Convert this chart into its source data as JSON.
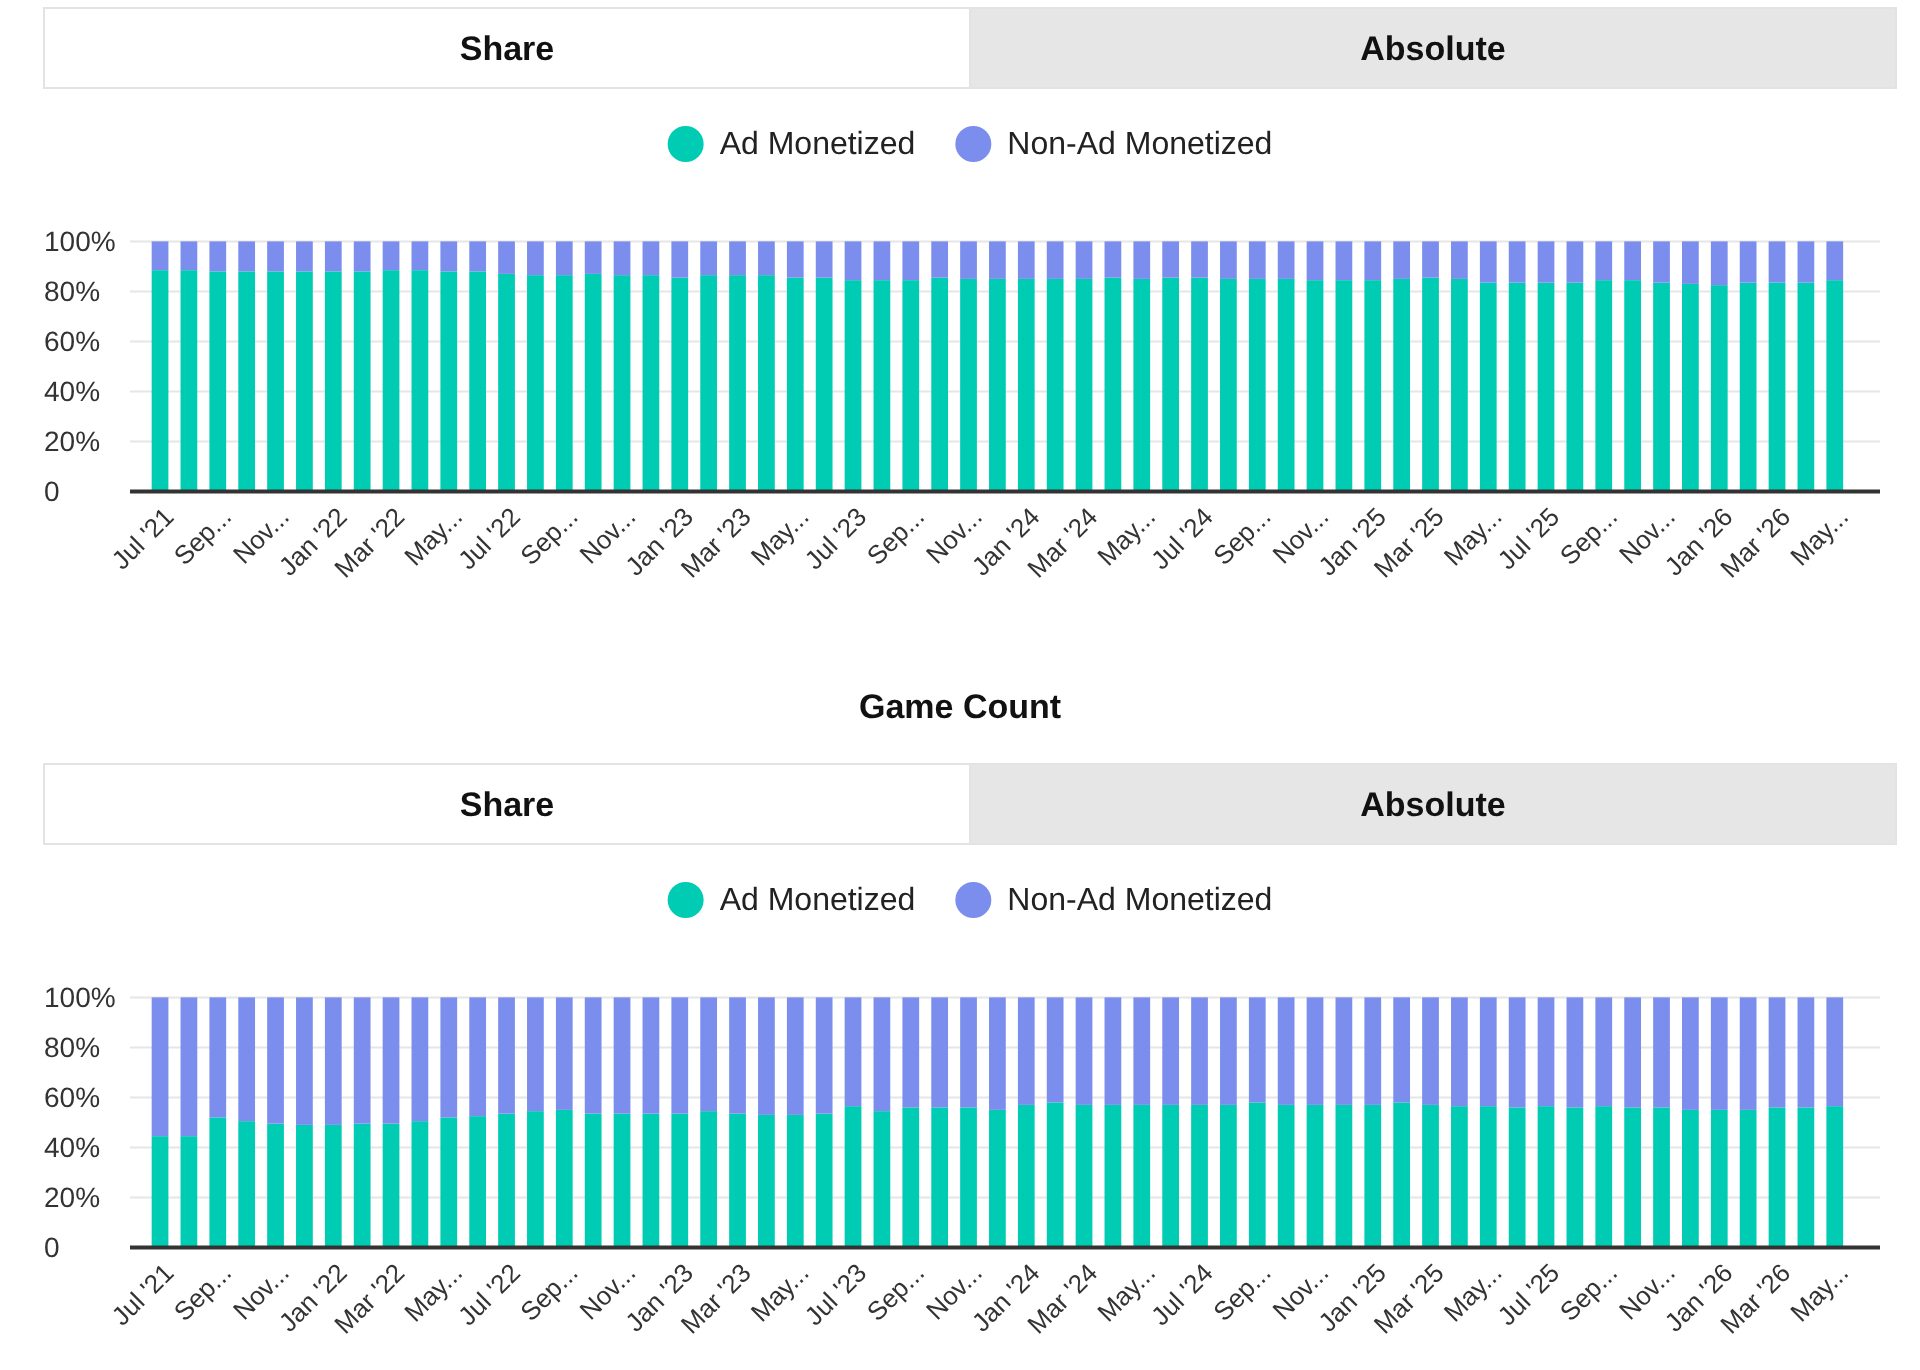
{
  "chart_data": [
    {
      "type": "bar",
      "stacked": true,
      "annotations": [
        "Share",
        "Absolute"
      ],
      "legend": "top",
      "grid": "y",
      "categories": [
        "Jul '21",
        null,
        "Sep...",
        null,
        "Nov...",
        null,
        "Jan '22",
        null,
        "Mar '22",
        null,
        "May...",
        null,
        "Jul '22",
        null,
        "Sep...",
        null,
        "Nov...",
        null,
        "Jan '23",
        null,
        "Mar '23",
        null,
        "May...",
        null,
        "Jul '23",
        null,
        "Sep...",
        null,
        "Nov...",
        null,
        "Jan '24",
        null,
        "Mar '24",
        null,
        "May...",
        null,
        "Jul '24",
        null,
        "Sep...",
        null,
        "Nov...",
        null,
        "Jan '25",
        null,
        "Mar '25",
        null,
        "May...",
        null,
        "Jul '25",
        null,
        "Sep...",
        null,
        "Nov...",
        null,
        "Jan '26",
        null,
        "Mar '26",
        null,
        "May..."
      ],
      "series": [
        {
          "name": "Ad Monetized",
          "color": "#00ccb4",
          "values": [
            88.5,
            88.5,
            88,
            88,
            88,
            88,
            88,
            88,
            88.5,
            88.5,
            88,
            88,
            87,
            86.5,
            86.5,
            87,
            86.5,
            86.5,
            85.5,
            86.5,
            86.5,
            86.5,
            85.5,
            85.5,
            84.5,
            84.5,
            84.5,
            85.5,
            85,
            85,
            85,
            85,
            85,
            85.5,
            85,
            85.5,
            85.5,
            85,
            85,
            85,
            84.5,
            84.5,
            84.5,
            85,
            85.5,
            85,
            83.5,
            83.5,
            83.5,
            83.5,
            84.5,
            84.5,
            83.5,
            83,
            82.5,
            83.5,
            83.5,
            83.5,
            84.5
          ]
        },
        {
          "name": "Non-Ad Monetized",
          "color": "#7b8eee",
          "values": [
            11.5,
            11.5,
            12,
            12,
            12,
            12,
            12,
            12,
            11.5,
            11.5,
            12,
            12,
            13,
            13.5,
            13.5,
            13,
            13.5,
            13.5,
            14.5,
            13.5,
            13.5,
            13.5,
            14.5,
            14.5,
            15.5,
            15.5,
            15.5,
            14.5,
            15,
            15,
            15,
            15,
            15,
            14.5,
            15,
            14.5,
            14.5,
            15,
            15,
            15,
            15.5,
            15.5,
            15.5,
            15,
            14.5,
            15,
            16.5,
            16.5,
            16.5,
            16.5,
            15.5,
            15.5,
            16.5,
            17,
            17.5,
            16.5,
            16.5,
            16.5,
            15.5
          ]
        }
      ],
      "ylim": [
        0,
        100
      ],
      "yticks": [
        0,
        {
          "value": 20,
          "label": "20%"
        },
        {
          "value": 40,
          "label": "40%"
        },
        {
          "value": 60,
          "label": "60%"
        },
        {
          "value": 80,
          "label": "80%"
        },
        {
          "value": 100,
          "label": "100%"
        }
      ]
    },
    {
      "type": "bar",
      "title": "Game Count",
      "stacked": true,
      "annotations": [
        "Share",
        "Absolute"
      ],
      "legend": "top",
      "grid": "y",
      "categories": [
        "Jul '21",
        null,
        "Sep...",
        null,
        "Nov...",
        null,
        "Jan '22",
        null,
        "Mar '22",
        null,
        "May...",
        null,
        "Jul '22",
        null,
        "Sep...",
        null,
        "Nov...",
        null,
        "Jan '23",
        null,
        "Mar '23",
        null,
        "May...",
        null,
        "Jul '23",
        null,
        "Sep...",
        null,
        "Nov...",
        null,
        "Jan '24",
        null,
        "Mar '24",
        null,
        "May...",
        null,
        "Jul '24",
        null,
        "Sep...",
        null,
        "Nov...",
        null,
        "Jan '25",
        null,
        "Mar '25",
        null,
        "May...",
        null,
        "Jul '25",
        null,
        "Sep...",
        null,
        "Nov...",
        null,
        "Jan '26",
        null,
        "Mar '26",
        null,
        "May..."
      ],
      "series": [
        {
          "name": "Ad Monetized",
          "color": "#00ccb4",
          "values": [
            44.5,
            44.5,
            52,
            50.5,
            49.5,
            49,
            49,
            49.5,
            49.5,
            50.5,
            52,
            52.5,
            53.5,
            54.5,
            55,
            53.5,
            53.5,
            53.5,
            53.5,
            54.5,
            53.5,
            53,
            53,
            53.5,
            56.5,
            54.5,
            56,
            56,
            56,
            55,
            57,
            58,
            57,
            57,
            57,
            57,
            57,
            57,
            58,
            57,
            57,
            57,
            57,
            58,
            57,
            56.5,
            56.5,
            56,
            56.5,
            56,
            56.5,
            56,
            56,
            55,
            55,
            55,
            56,
            56,
            56.5
          ]
        },
        {
          "name": "Non-Ad Monetized",
          "color": "#7b8eee",
          "values": [
            55.5,
            55.5,
            48,
            49.5,
            50.5,
            51,
            51,
            50.5,
            50.5,
            49.5,
            48,
            47.5,
            46.5,
            45.5,
            45,
            46.5,
            46.5,
            46.5,
            46.5,
            45.5,
            46.5,
            47,
            47,
            46.5,
            43.5,
            45.5,
            44,
            44,
            44,
            45,
            43,
            42,
            43,
            43,
            43,
            43,
            43,
            43,
            42,
            43,
            43,
            43,
            43,
            42,
            43,
            43.5,
            43.5,
            44,
            43.5,
            44,
            43.5,
            44,
            44,
            45,
            45,
            45,
            44,
            44,
            43.5
          ]
        }
      ],
      "ylim": [
        0,
        100
      ],
      "yticks": [
        0,
        {
          "value": 20,
          "label": "20%"
        },
        {
          "value": 40,
          "label": "40%"
        },
        {
          "value": 60,
          "label": "60%"
        },
        {
          "value": 80,
          "label": "80%"
        },
        {
          "value": 100,
          "label": "100%"
        }
      ]
    }
  ]
}
